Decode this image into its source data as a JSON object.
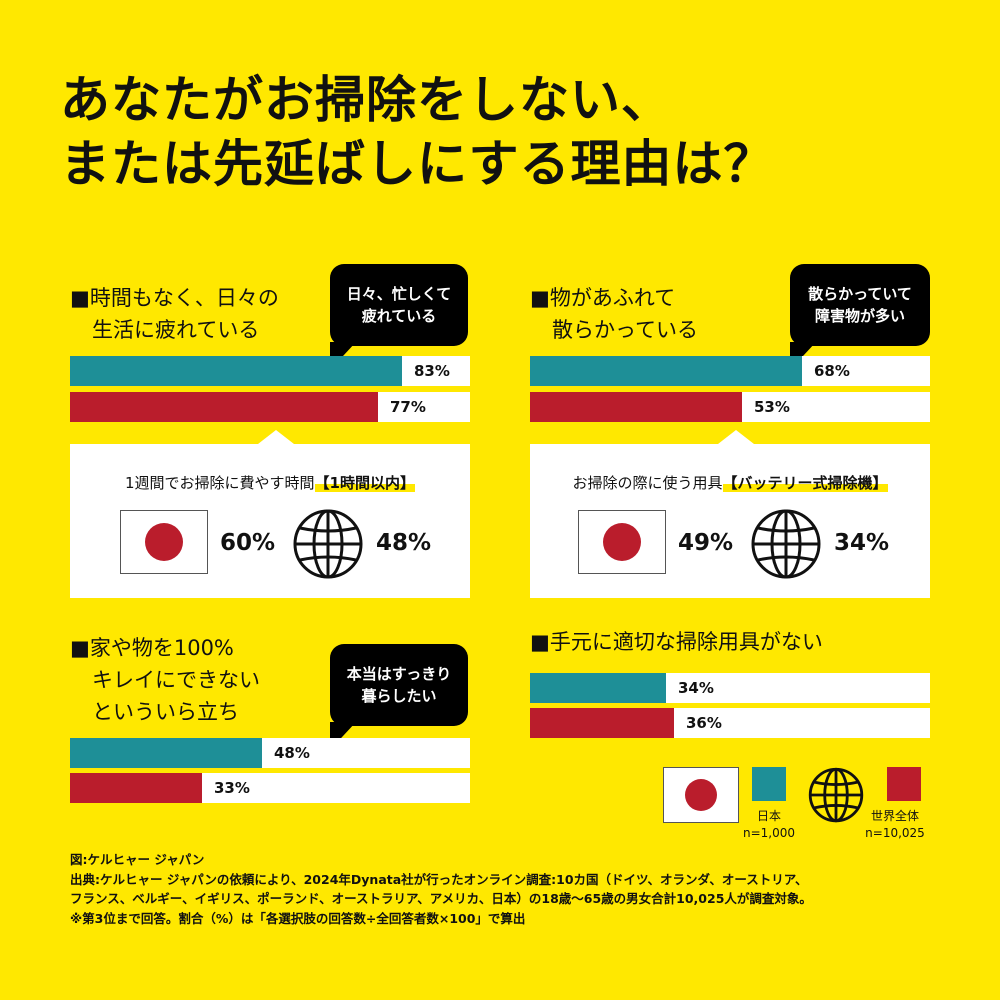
{
  "title": {
    "line1": "あなたがお掃除をしない、",
    "line2": "または先延ばしにする理由は？"
  },
  "sections": [
    {
      "heading_lines": [
        "■時間もなく、日々の",
        "生活に疲れている"
      ],
      "bubble_lines": [
        "日々、忙しくて",
        "疲れている"
      ],
      "japan_label": "83%",
      "world_label": "77%"
    },
    {
      "heading_lines": [
        "■物があふれて",
        "散らかっている"
      ],
      "bubble_lines": [
        "散らかっていて",
        "障害物が多い"
      ],
      "japan_label": "68%",
      "world_label": "53%"
    },
    {
      "heading_lines": [
        "■家や物を100%",
        "キレイにできない",
        "といういら立ち"
      ],
      "bubble_lines": [
        "本当はすっきり",
        "暮らしたい"
      ],
      "japan_label": "48%",
      "world_label": "33%"
    },
    {
      "heading_lines": [
        "■手元に適切な掃除用具がない"
      ],
      "japan_label": "34%",
      "world_label": "36%"
    }
  ],
  "cards": [
    {
      "title_prefix": "1週間でお掃除に費やす時間",
      "title_highlight": "【1時間以内】",
      "japan_value": "60%",
      "world_value": "48%"
    },
    {
      "title_prefix": "お掃除の際に使う用具",
      "title_highlight": "【バッテリー式掃除機】",
      "japan_value": "49%",
      "world_value": "34%"
    }
  ],
  "legend": {
    "japan_label": "日本",
    "japan_n": "n=1,000",
    "world_label": "世界全体",
    "world_n": "n=10,025"
  },
  "footer": {
    "line1": "図:ケルヒャー ジャパン",
    "line2": "出典:ケルヒャー ジャパンの依頼により、2024年Dynata社が行ったオンライン調査:10カ国（ドイツ、オランダ、オーストリア、",
    "line3": "フランス、ベルギー、イギリス、ポーランド、オーストラリア、アメリカ、日本）の18歳～65歳の男女合計10,025人が調査対象。",
    "line4": "※第3位まで回答。割合（%）は「各選択肢の回答数÷全回答者数×100」で算出"
  },
  "colors": {
    "background": "#FFE800",
    "japan": "#1E8F97",
    "world": "#BA1D2C",
    "flag_disc": "#BA1D2C",
    "bubble": "#000000"
  },
  "chart_data": [
    {
      "type": "bar",
      "categories": [
        "時間もなく、日々の生活に疲れている"
      ],
      "series": [
        {
          "name": "日本",
          "values": [
            83
          ]
        },
        {
          "name": "世界全体",
          "values": [
            77
          ]
        }
      ],
      "ylim": [
        0,
        100
      ]
    },
    {
      "type": "bar",
      "categories": [
        "物があふれて散らかっている"
      ],
      "series": [
        {
          "name": "日本",
          "values": [
            68
          ]
        },
        {
          "name": "世界全体",
          "values": [
            53
          ]
        }
      ],
      "ylim": [
        0,
        100
      ]
    },
    {
      "type": "bar",
      "categories": [
        "家や物を100%キレイにできないといういら立ち"
      ],
      "series": [
        {
          "name": "日本",
          "values": [
            48
          ]
        },
        {
          "name": "世界全体",
          "values": [
            33
          ]
        }
      ],
      "ylim": [
        0,
        100
      ]
    },
    {
      "type": "bar",
      "categories": [
        "手元に適切な掃除用具がない"
      ],
      "series": [
        {
          "name": "日本",
          "values": [
            34
          ]
        },
        {
          "name": "世界全体",
          "values": [
            36
          ]
        }
      ],
      "ylim": [
        0,
        100
      ]
    }
  ]
}
